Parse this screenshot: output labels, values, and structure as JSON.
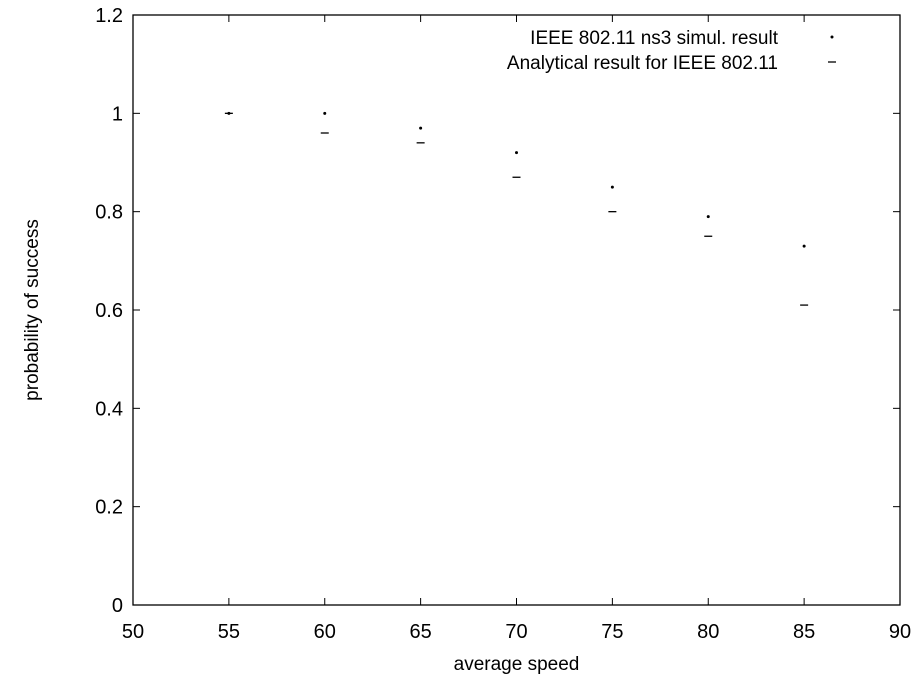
{
  "chart_data": {
    "type": "scatter",
    "title": "",
    "xlabel": "average speed",
    "ylabel": "probability of success",
    "xlim": [
      50,
      90
    ],
    "ylim": [
      0,
      1.2
    ],
    "x_ticks": [
      50,
      55,
      60,
      65,
      70,
      75,
      80,
      85,
      90
    ],
    "y_ticks": [
      0,
      0.2,
      0.4,
      0.6,
      0.8,
      1,
      1.2
    ],
    "x_tick_labels": [
      "50",
      "55",
      "60",
      "65",
      "70",
      "75",
      "80",
      "85",
      "90"
    ],
    "y_tick_labels": [
      "0",
      "0.2",
      "0.4",
      "0.6",
      "0.8",
      "1",
      "1.2"
    ],
    "grid": false,
    "legend_position": "top-right",
    "series": [
      {
        "name": "IEEE 802.11 ns3 simul. result",
        "marker": "dot",
        "color": "#000000",
        "x": [
          55,
          60,
          65,
          70,
          75,
          80,
          85
        ],
        "y": [
          1.0,
          1.0,
          0.97,
          0.92,
          0.85,
          0.79,
          0.73
        ]
      },
      {
        "name": "Analytical result for IEEE 802.11",
        "marker": "dash",
        "color": "#000000",
        "x": [
          55,
          60,
          65,
          70,
          75,
          80,
          85
        ],
        "y": [
          1.0,
          0.96,
          0.94,
          0.87,
          0.8,
          0.75,
          0.61
        ]
      }
    ]
  }
}
